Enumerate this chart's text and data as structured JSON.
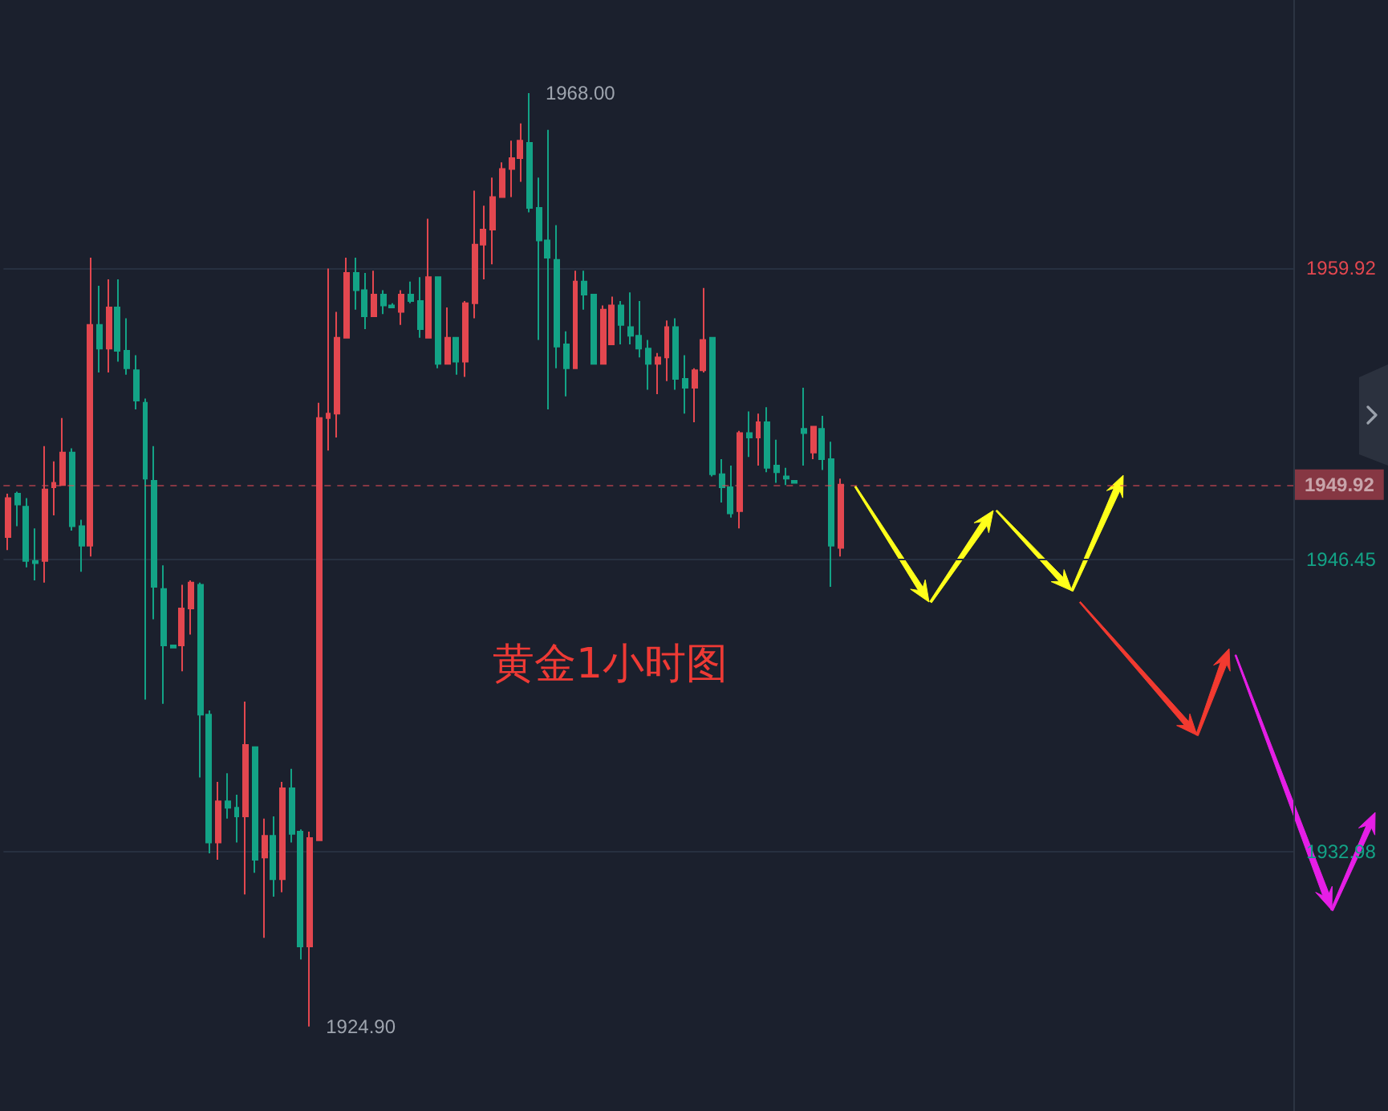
{
  "chart_data": {
    "type": "candlestick",
    "title": "黄金1小时图",
    "categories": [
      null,
      null,
      null,
      null,
      null,
      null,
      null,
      null,
      null,
      null,
      null,
      null,
      null,
      null,
      null,
      null,
      null,
      null,
      null,
      null,
      null,
      null,
      null,
      null,
      null,
      null,
      null,
      null,
      null,
      null,
      null,
      null,
      null,
      null,
      null,
      null,
      null,
      null,
      null,
      null,
      null,
      null,
      null,
      null,
      null,
      null,
      null,
      null,
      null,
      null,
      null,
      null,
      null,
      null,
      null,
      null,
      null,
      null,
      null,
      null,
      null,
      null,
      null,
      null,
      null,
      null,
      null,
      null,
      null,
      null,
      null,
      null,
      null,
      null,
      null,
      null,
      null,
      null,
      null,
      null,
      null,
      null,
      null,
      null,
      null,
      null,
      null,
      null,
      null,
      null,
      null,
      null,
      null,
      null,
      null,
      null,
      null,
      null,
      null,
      null,
      null,
      null,
      null,
      null,
      null,
      null,
      null,
      null,
      null,
      null,
      null,
      null,
      null,
      null,
      null,
      null,
      null,
      null,
      null,
      null,
      null,
      null,
      null,
      null,
      null,
      null,
      null,
      null,
      null,
      null,
      null,
      null,
      null,
      null,
      null,
      null,
      null,
      null,
      null,
      null,
      null
    ],
    "ohlc": [
      [
        1947.5,
        1949.5,
        1946.9,
        1949.3
      ],
      [
        1949.5,
        1949.6,
        1948.0,
        1949.0
      ],
      [
        1948.9,
        1949.3,
        1946.1,
        1946.4
      ],
      [
        1946.4,
        1947.9,
        1945.5,
        1946.3
      ],
      [
        1946.4,
        1951.7,
        1945.4,
        1949.7
      ],
      [
        1949.8,
        1951.0,
        1948.5,
        1950.0
      ],
      [
        1949.9,
        1953.0,
        1949.9,
        1951.4
      ],
      [
        1951.4,
        1951.6,
        1947.8,
        1948.0
      ],
      [
        1948.0,
        1948.3,
        1945.9,
        1947.1
      ],
      [
        1947.1,
        1960.4,
        1946.6,
        1957.3
      ],
      [
        1957.3,
        1959.1,
        1955.1,
        1956.2
      ],
      [
        1956.2,
        1959.4,
        1955.1,
        1958.1
      ],
      [
        1958.1,
        1959.4,
        1955.6,
        1956.1
      ],
      [
        1956.1,
        1957.6,
        1955.0,
        1955.3
      ],
      [
        1955.2,
        1955.9,
        1953.4,
        1953.8
      ],
      [
        1953.7,
        1953.9,
        1940.0,
        1950.2
      ],
      [
        1950.1,
        1951.7,
        1943.7,
        1945.2
      ],
      [
        1945.1,
        1946.2,
        1939.8,
        1942.5
      ],
      [
        1942.5,
        1942.5,
        1942.4,
        1942.4
      ],
      [
        1942.5,
        1945.3,
        1941.3,
        1944.2
      ],
      [
        1944.2,
        1945.5,
        1943.0,
        1945.4
      ],
      [
        1945.3,
        1945.4,
        1936.4,
        1939.3
      ],
      [
        1939.3,
        1939.5,
        1932.9,
        1933.4
      ],
      [
        1933.4,
        1936.2,
        1932.6,
        1935.3
      ],
      [
        1935.3,
        1936.6,
        1934.5,
        1935.0
      ],
      [
        1935.0,
        1935.6,
        1933.4,
        1934.6
      ],
      [
        1934.6,
        1939.9,
        1931.0,
        1937.9
      ],
      [
        1937.8,
        1937.8,
        1932.0,
        1932.6
      ],
      [
        1932.7,
        1934.5,
        1929.0,
        1933.7
      ],
      [
        1933.7,
        1934.6,
        1930.9,
        1931.7
      ],
      [
        1931.7,
        1936.2,
        1931.1,
        1935.9
      ],
      [
        1935.9,
        1936.8,
        1933.4,
        1933.8
      ],
      [
        1933.9,
        1934.0,
        1928.0,
        1928.6
      ],
      [
        1928.6,
        1933.9,
        1924.9,
        1933.6
      ],
      [
        1933.5,
        1953.7,
        1933.5,
        1953.0
      ],
      [
        1953.0,
        1959.9,
        1951.5,
        1953.2
      ],
      [
        1953.2,
        1957.9,
        1952.1,
        1956.7
      ],
      [
        1956.7,
        1960.4,
        1956.7,
        1959.7
      ],
      [
        1959.7,
        1960.4,
        1958.0,
        1958.9
      ],
      [
        1958.9,
        1959.7,
        1957.1,
        1957.7
      ],
      [
        1957.7,
        1959.8,
        1957.7,
        1958.7
      ],
      [
        1958.7,
        1958.9,
        1957.8,
        1958.2
      ],
      [
        1958.2,
        1958.3,
        1958.1,
        1958.1
      ],
      [
        1957.9,
        1958.9,
        1957.3,
        1958.7
      ],
      [
        1958.7,
        1959.3,
        1958.3,
        1958.4
      ],
      [
        1958.4,
        1959.5,
        1956.7,
        1957.1
      ],
      [
        1956.7,
        1962.2,
        1956.7,
        1959.5
      ],
      [
        1959.5,
        1959.5,
        1955.3,
        1955.5
      ],
      [
        1955.5,
        1958.1,
        1955.5,
        1956.7
      ],
      [
        1956.7,
        1956.7,
        1955.0,
        1955.6
      ],
      [
        1955.6,
        1958.4,
        1954.9,
        1958.3
      ],
      [
        1958.3,
        1963.5,
        1957.6,
        1961.0
      ],
      [
        1961.0,
        1962.8,
        1959.4,
        1961.7
      ],
      [
        1961.7,
        1964.1,
        1960.1,
        1963.2
      ],
      [
        1963.2,
        1964.8,
        1963.2,
        1964.5
      ],
      [
        1964.5,
        1965.8,
        1963.2,
        1965.0
      ],
      [
        1965.0,
        1966.6,
        1963.9,
        1965.8
      ],
      [
        1965.7,
        1968.0,
        1962.5,
        1962.7
      ],
      [
        1962.7,
        1964.1,
        1956.6,
        1961.2
      ],
      [
        1961.2,
        1966.3,
        1953.4,
        1960.4
      ],
      [
        1960.3,
        1961.9,
        1955.3,
        1956.3
      ],
      [
        1956.4,
        1957.0,
        1954.0,
        1955.3
      ],
      [
        1955.3,
        1959.8,
        1955.3,
        1959.3
      ],
      [
        1959.3,
        1959.8,
        1958.0,
        1958.7
      ],
      [
        1958.7,
        1958.7,
        1955.5,
        1955.5
      ],
      [
        1955.5,
        1958.2,
        1955.5,
        1958.0
      ],
      [
        1956.4,
        1958.6,
        1956.4,
        1958.2
      ],
      [
        1958.2,
        1958.4,
        1956.4,
        1957.3
      ],
      [
        1957.2,
        1958.8,
        1956.4,
        1956.8
      ],
      [
        1956.8,
        1958.4,
        1955.8,
        1956.2
      ],
      [
        1956.2,
        1956.6,
        1954.3,
        1955.5
      ],
      [
        1955.5,
        1956.0,
        1954.1,
        1955.8
      ],
      [
        1955.8,
        1957.5,
        1954.7,
        1957.2
      ],
      [
        1957.2,
        1957.6,
        1954.3,
        1954.8
      ],
      [
        1954.8,
        1955.9,
        1953.2,
        1954.4
      ],
      [
        1954.4,
        1955.3,
        1952.8,
        1955.2
      ],
      [
        1955.2,
        1959.0,
        1955.1,
        1956.6
      ],
      [
        1956.7,
        1956.7,
        1950.3,
        1950.4
      ],
      [
        1950.4,
        1951.1,
        1949.1,
        1949.8
      ],
      [
        1949.8,
        1950.8,
        1948.4,
        1948.6
      ],
      [
        1948.7,
        1952.4,
        1947.9,
        1952.3
      ],
      [
        1952.3,
        1953.3,
        1951.2,
        1952.1
      ],
      [
        1952.1,
        1953.2,
        1950.8,
        1952.8
      ],
      [
        1952.8,
        1953.5,
        1950.5,
        1950.7
      ],
      [
        1950.8,
        1952.0,
        1950.0,
        1950.5
      ],
      [
        1950.3,
        1950.7,
        1949.9,
        1950.2
      ],
      [
        1950.1,
        1950.1,
        1950.0,
        1950.0
      ],
      [
        1952.5,
        1954.4,
        1950.8,
        1952.3
      ],
      [
        1951.4,
        1952.6,
        1951.1,
        1952.6
      ],
      [
        1952.5,
        1953.1,
        1950.6,
        1951.1
      ],
      [
        1951.1,
        1951.9,
        1945.2,
        1947.1
      ],
      [
        1947.0,
        1950.2,
        1946.6,
        1949.92
      ],
      null,
      null,
      null,
      null,
      null,
      null,
      null,
      null,
      null,
      null,
      null,
      null,
      null,
      null,
      null,
      null,
      null,
      null,
      null,
      null,
      null,
      null,
      null,
      null,
      null,
      null,
      null,
      null,
      null,
      null,
      null,
      null,
      null,
      null,
      null,
      null,
      null,
      null,
      null,
      null,
      null,
      null,
      null,
      null,
      null,
      null,
      null,
      null,
      null
    ],
    "ylim": [
      1921.0,
      1972.3
    ],
    "yticks": [
      1932.98,
      1946.45,
      1959.92
    ],
    "grid": "y",
    "tick_labels": "y",
    "ref_lines": [
      {
        "axis": "y",
        "value": 1949.92,
        "label": "1949.92",
        "color": "#de4a55",
        "line_style": "dashed"
      }
    ],
    "annotations": [
      "1968.00",
      "1924.90"
    ]
  }
}
